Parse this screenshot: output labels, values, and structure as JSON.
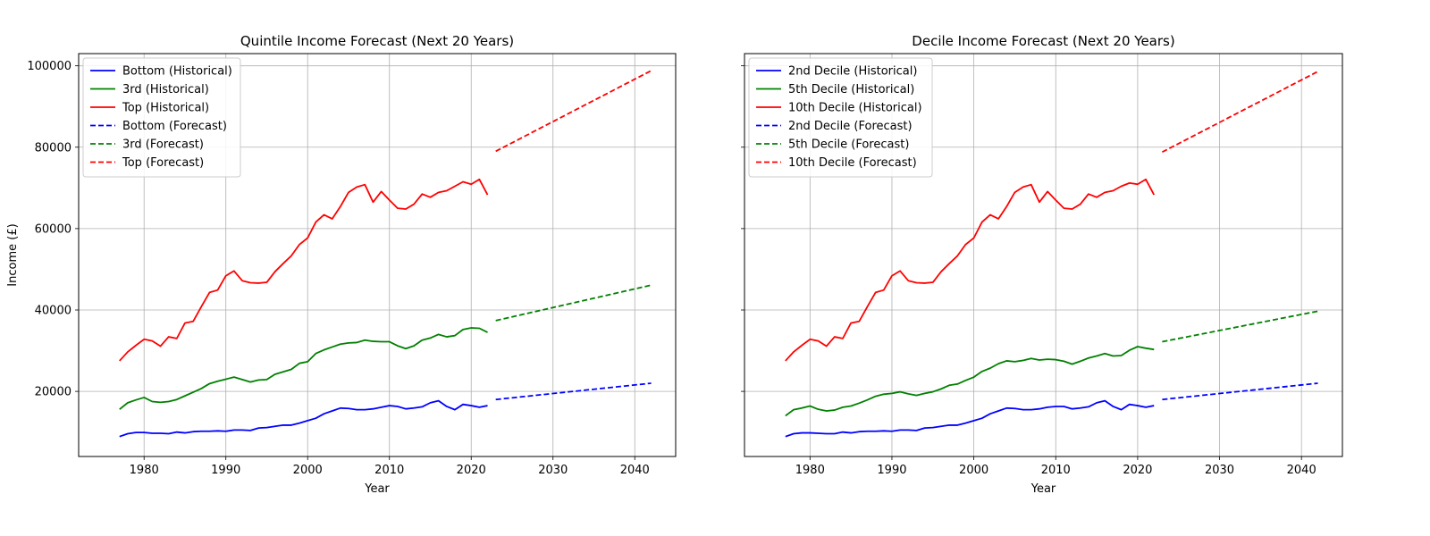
{
  "chart_data": [
    {
      "type": "line",
      "title": "Quintile Income Forecast (Next 20 Years)",
      "xlabel": "Year",
      "ylabel": "Income (£)",
      "xlim": [
        1972,
        2045
      ],
      "ylim": [
        4000,
        103000
      ],
      "xticks": [
        1980,
        1990,
        2000,
        2010,
        2020,
        2030,
        2040
      ],
      "yticks": [
        20000,
        40000,
        60000,
        80000,
        100000
      ],
      "grid": true,
      "legend_position": "top-left",
      "series": [
        {
          "name": "Bottom (Historical)",
          "color": "#0000ff",
          "style": "solid",
          "x": [
            1977,
            1978,
            1979,
            1980,
            1981,
            1982,
            1983,
            1984,
            1985,
            1986,
            1987,
            1988,
            1989,
            1990,
            1991,
            1992,
            1993,
            1994,
            1995,
            1996,
            1997,
            1998,
            1999,
            2000,
            2001,
            2002,
            2003,
            2004,
            2005,
            2006,
            2007,
            2008,
            2009,
            2010,
            2011,
            2012,
            2013,
            2014,
            2015,
            2016,
            2017,
            2018,
            2019,
            2020,
            2021,
            2022
          ],
          "y": [
            8900,
            9600,
            9900,
            9900,
            9700,
            9700,
            9600,
            10000,
            9800,
            10100,
            10200,
            10200,
            10300,
            10200,
            10500,
            10500,
            10400,
            11000,
            11100,
            11400,
            11700,
            11700,
            12200,
            12800,
            13400,
            14500,
            15200,
            15900,
            15800,
            15500,
            15500,
            15700,
            16100,
            16500,
            16300,
            15700,
            15900,
            16200,
            17200,
            17700,
            16300,
            15500,
            16800,
            16500,
            16100,
            16500
          ]
        },
        {
          "name": "3rd (Historical)",
          "color": "#008000",
          "style": "solid",
          "x": [
            1977,
            1978,
            1979,
            1980,
            1981,
            1982,
            1983,
            1984,
            1985,
            1986,
            1987,
            1988,
            1989,
            1990,
            1991,
            1992,
            1993,
            1994,
            1995,
            1996,
            1997,
            1998,
            1999,
            2000,
            2001,
            2002,
            2003,
            2004,
            2005,
            2006,
            2007,
            2008,
            2009,
            2010,
            2011,
            2012,
            2013,
            2014,
            2015,
            2016,
            2017,
            2018,
            2019,
            2020,
            2021,
            2022
          ],
          "y": [
            15600,
            17200,
            17900,
            18500,
            17500,
            17300,
            17500,
            18000,
            18900,
            19800,
            20700,
            21900,
            22500,
            23000,
            23500,
            22900,
            22300,
            22800,
            22900,
            24200,
            24800,
            25400,
            26900,
            27300,
            29300,
            30200,
            30900,
            31600,
            31900,
            32000,
            32600,
            32300,
            32200,
            32200,
            31200,
            30500,
            31200,
            32600,
            33100,
            34000,
            33400,
            33700,
            35200,
            35600,
            35500,
            34500
          ]
        },
        {
          "name": "Top (Historical)",
          "color": "#ff0000",
          "style": "solid",
          "x": [
            1977,
            1978,
            1979,
            1980,
            1981,
            1982,
            1983,
            1984,
            1985,
            1986,
            1987,
            1988,
            1989,
            1990,
            1991,
            1992,
            1993,
            1994,
            1995,
            1996,
            1997,
            1998,
            1999,
            2000,
            2001,
            2002,
            2003,
            2004,
            2005,
            2006,
            2007,
            2008,
            2009,
            2010,
            2011,
            2012,
            2013,
            2014,
            2015,
            2016,
            2017,
            2018,
            2019,
            2020,
            2021,
            2022
          ],
          "y": [
            27500,
            29700,
            31300,
            32800,
            32400,
            31100,
            33400,
            33000,
            36800,
            37200,
            40800,
            44300,
            44900,
            48400,
            49600,
            47200,
            46700,
            46600,
            46800,
            49400,
            51400,
            53300,
            56100,
            57700,
            61600,
            63400,
            62400,
            65400,
            68900,
            70200,
            70800,
            66500,
            69100,
            67000,
            65000,
            64800,
            66000,
            68500,
            67700,
            68900,
            69300,
            70400,
            71500,
            70900,
            72100,
            68300
          ]
        },
        {
          "name": "Bottom (Forecast)",
          "color": "#0000ff",
          "style": "dashed",
          "x": [
            2023,
            2042
          ],
          "y": [
            18000,
            22000
          ]
        },
        {
          "name": "3rd (Forecast)",
          "color": "#008000",
          "style": "dashed",
          "x": [
            2023,
            2042
          ],
          "y": [
            37400,
            46100
          ]
        },
        {
          "name": "Top (Forecast)",
          "color": "#ff0000",
          "style": "dashed",
          "x": [
            2023,
            2042
          ],
          "y": [
            79000,
            98800
          ]
        }
      ]
    },
    {
      "type": "line",
      "title": "Decile Income Forecast (Next 20 Years)",
      "xlabel": "Year",
      "ylabel": "",
      "xlim": [
        1972,
        2045
      ],
      "ylim": [
        4000,
        103000
      ],
      "xticks": [
        1980,
        1990,
        2000,
        2010,
        2020,
        2030,
        2040
      ],
      "yticks": [
        20000,
        40000,
        60000,
        80000,
        100000
      ],
      "show_ytick_labels": false,
      "grid": true,
      "legend_position": "top-left",
      "series": [
        {
          "name": "2nd Decile (Historical)",
          "color": "#0000ff",
          "style": "solid",
          "x": [
            1977,
            1978,
            1979,
            1980,
            1981,
            1982,
            1983,
            1984,
            1985,
            1986,
            1987,
            1988,
            1989,
            1990,
            1991,
            1992,
            1993,
            1994,
            1995,
            1996,
            1997,
            1998,
            1999,
            2000,
            2001,
            2002,
            2003,
            2004,
            2005,
            2006,
            2007,
            2008,
            2009,
            2010,
            2011,
            2012,
            2013,
            2014,
            2015,
            2016,
            2017,
            2018,
            2019,
            2020,
            2021,
            2022
          ],
          "y": [
            8900,
            9600,
            9800,
            9800,
            9700,
            9600,
            9600,
            10000,
            9800,
            10100,
            10200,
            10200,
            10300,
            10200,
            10500,
            10500,
            10400,
            11000,
            11100,
            11400,
            11700,
            11700,
            12200,
            12800,
            13400,
            14500,
            15200,
            15900,
            15800,
            15500,
            15500,
            15700,
            16100,
            16300,
            16300,
            15700,
            15900,
            16200,
            17200,
            17700,
            16300,
            15500,
            16800,
            16500,
            16100,
            16500
          ]
        },
        {
          "name": "5th Decile (Historical)",
          "color": "#008000",
          "style": "solid",
          "x": [
            1977,
            1978,
            1979,
            1980,
            1981,
            1982,
            1983,
            1984,
            1985,
            1986,
            1987,
            1988,
            1989,
            1990,
            1991,
            1992,
            1993,
            1994,
            1995,
            1996,
            1997,
            1998,
            1999,
            2000,
            2001,
            2002,
            2003,
            2004,
            2005,
            2006,
            2007,
            2008,
            2009,
            2010,
            2011,
            2012,
            2013,
            2014,
            2015,
            2016,
            2017,
            2018,
            2019,
            2020,
            2021,
            2022
          ],
          "y": [
            14000,
            15500,
            15900,
            16400,
            15600,
            15200,
            15400,
            16100,
            16400,
            17100,
            17900,
            18800,
            19300,
            19500,
            19900,
            19400,
            19000,
            19500,
            19900,
            20600,
            21500,
            21800,
            22700,
            23500,
            24900,
            25700,
            26800,
            27500,
            27300,
            27600,
            28100,
            27700,
            27900,
            27800,
            27400,
            26700,
            27400,
            28200,
            28700,
            29300,
            28700,
            28800,
            30100,
            31000,
            30600,
            30300
          ]
        },
        {
          "name": "10th Decile (Historical)",
          "color": "#ff0000",
          "style": "solid",
          "x": [
            1977,
            1978,
            1979,
            1980,
            1981,
            1982,
            1983,
            1984,
            1985,
            1986,
            1987,
            1988,
            1989,
            1990,
            1991,
            1992,
            1993,
            1994,
            1995,
            1996,
            1997,
            1998,
            1999,
            2000,
            2001,
            2002,
            2003,
            2004,
            2005,
            2006,
            2007,
            2008,
            2009,
            2010,
            2011,
            2012,
            2013,
            2014,
            2015,
            2016,
            2017,
            2018,
            2019,
            2020,
            2021,
            2022
          ],
          "y": [
            27500,
            29700,
            31300,
            32800,
            32400,
            31100,
            33400,
            33000,
            36800,
            37200,
            40800,
            44300,
            44900,
            48400,
            49600,
            47200,
            46700,
            46600,
            46800,
            49400,
            51400,
            53300,
            56100,
            57700,
            61600,
            63400,
            62400,
            65400,
            68900,
            70200,
            70800,
            66500,
            69100,
            67000,
            65000,
            64800,
            66000,
            68500,
            67700,
            68900,
            69300,
            70400,
            71200,
            70900,
            72100,
            68300
          ]
        },
        {
          "name": "2nd Decile (Forecast)",
          "color": "#0000ff",
          "style": "dashed",
          "x": [
            2023,
            2042
          ],
          "y": [
            18000,
            22000
          ]
        },
        {
          "name": "5th Decile (Forecast)",
          "color": "#008000",
          "style": "dashed",
          "x": [
            2023,
            2042
          ],
          "y": [
            32200,
            39700
          ]
        },
        {
          "name": "10th Decile (Forecast)",
          "color": "#ff0000",
          "style": "dashed",
          "x": [
            2023,
            2042
          ],
          "y": [
            78800,
            98600
          ]
        }
      ]
    }
  ]
}
